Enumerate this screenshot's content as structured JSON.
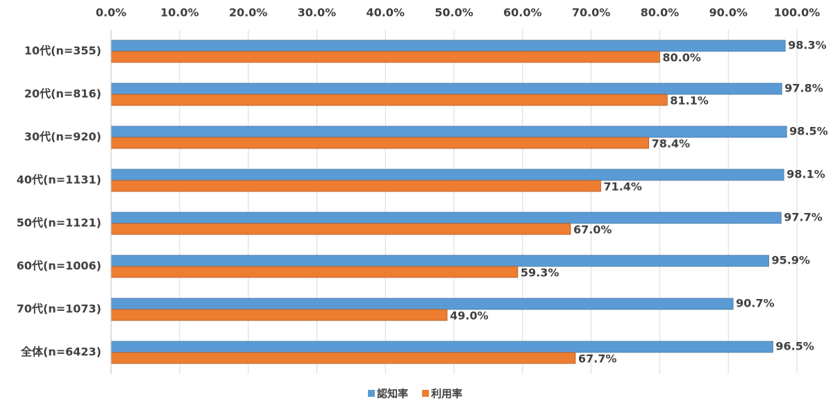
{
  "chart_data": {
    "type": "hbar",
    "categories": [
      "10代(n=355)",
      "20代(n=816)",
      "30代(n=920)",
      "40代(n=1131)",
      "50代(n=1121)",
      "60代(n=1006)",
      "70代(n=1073)",
      "全体(n=6423)"
    ],
    "series": [
      {
        "name": "認知率",
        "color": "#5b9bd5",
        "values": [
          98.3,
          97.8,
          98.5,
          98.1,
          97.7,
          95.9,
          90.7,
          96.5
        ],
        "value_labels": [
          "98.3%",
          "97.8%",
          "98.5%",
          "98.1%",
          "97.7%",
          "95.9%",
          "90.7%",
          "96.5%"
        ]
      },
      {
        "name": "利用率",
        "color": "#ed7d31",
        "values": [
          80.0,
          81.1,
          78.4,
          71.4,
          67.0,
          59.3,
          49.0,
          67.7
        ],
        "value_labels": [
          "80.0%",
          "81.1%",
          "78.4%",
          "71.4%",
          "67.0%",
          "59.3%",
          "49.0%",
          "67.7%"
        ]
      }
    ],
    "xlim": [
      0,
      100
    ],
    "xticks": [
      {
        "value": 0,
        "label": "0.0%"
      },
      {
        "value": 10,
        "label": "10.0%"
      },
      {
        "value": 20,
        "label": "20.0%"
      },
      {
        "value": 30,
        "label": "30.0%"
      },
      {
        "value": 40,
        "label": "40.0%"
      },
      {
        "value": 50,
        "label": "50.0%"
      },
      {
        "value": 60,
        "label": "60.0%"
      },
      {
        "value": 70,
        "label": "70.0%"
      },
      {
        "value": 80,
        "label": "80.0%"
      },
      {
        "value": 90,
        "label": "90.0%"
      },
      {
        "value": 100,
        "label": "100.0%"
      }
    ],
    "grid": true,
    "legend": "bottom"
  }
}
